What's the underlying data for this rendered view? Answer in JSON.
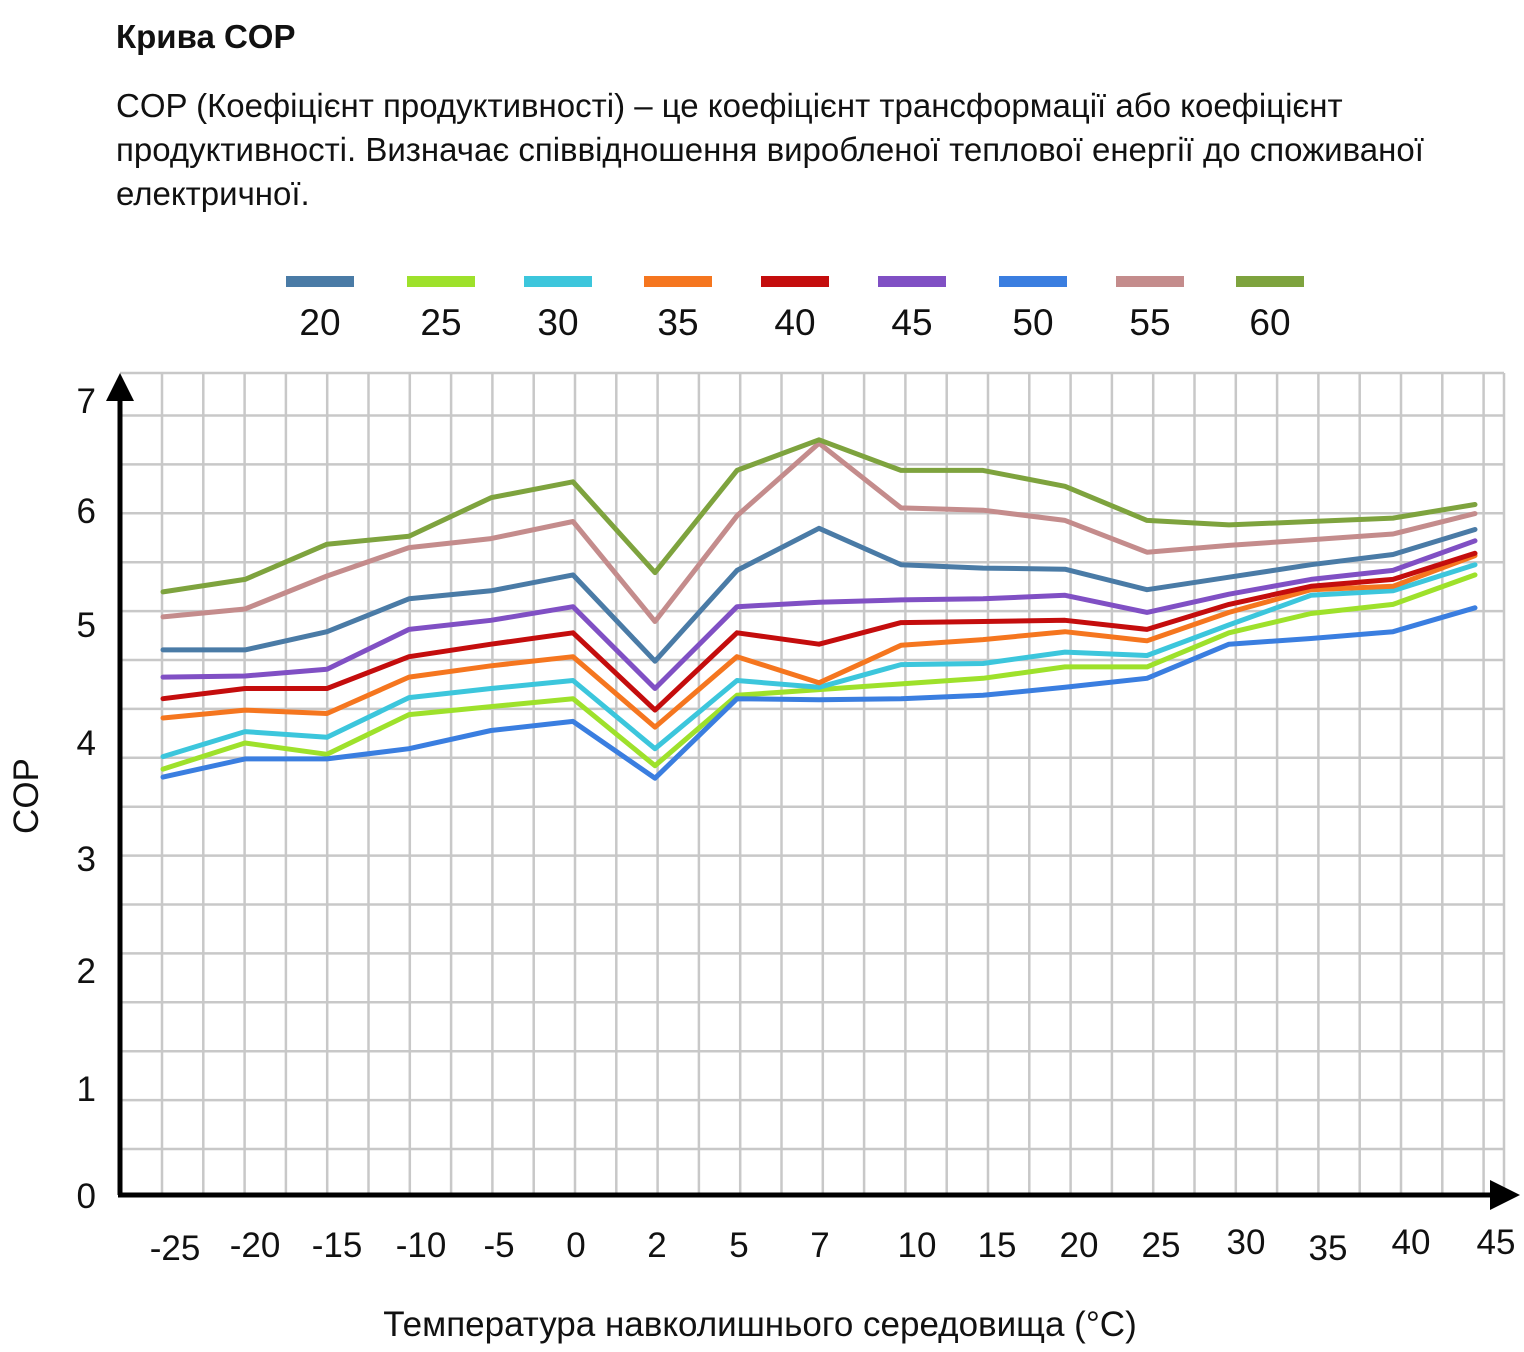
{
  "header": {
    "title": "Крива COP",
    "description": "COP (Коефіцієнт продуктивності) – це коефіцієнт трансформації або коефіцієнт продуктивності. Визначає співвідношення виробленої теплової енергії до споживаної електричної."
  },
  "chart_data": {
    "type": "line",
    "xlabel": "Температура навколишнього середовища (°C)",
    "ylabel": "COP",
    "x": [
      "-25",
      "-20",
      "-15",
      "-10",
      "-5",
      "0",
      "2",
      "5",
      "7",
      "10",
      "15",
      "20",
      "25",
      "30",
      "35",
      "40",
      "45"
    ],
    "ylim": [
      0,
      7
    ],
    "yticks": [
      "0",
      "1",
      "2",
      "3",
      "4",
      "5",
      "6",
      "7"
    ],
    "grid": true,
    "legend_position": "top",
    "series": [
      {
        "name": "20",
        "color": "#4a7ba6",
        "values": [
          4.8,
          4.8,
          4.96,
          5.25,
          5.32,
          5.46,
          4.7,
          5.5,
          5.87,
          5.55,
          5.52,
          5.51,
          5.33,
          5.44,
          5.55,
          5.64,
          5.86
        ]
      },
      {
        "name": "25",
        "color": "#9ee12b",
        "values": [
          3.75,
          3.98,
          3.88,
          4.23,
          4.3,
          4.37,
          3.78,
          4.4,
          4.45,
          4.5,
          4.55,
          4.65,
          4.65,
          4.95,
          5.12,
          5.2,
          5.46
        ]
      },
      {
        "name": "30",
        "color": "#3cc6dc",
        "values": [
          3.86,
          4.08,
          4.03,
          4.38,
          4.46,
          4.53,
          3.93,
          4.53,
          4.47,
          4.67,
          4.68,
          4.78,
          4.75,
          5.02,
          5.28,
          5.32,
          5.55
        ]
      },
      {
        "name": "35",
        "color": "#f5761f",
        "values": [
          4.2,
          4.27,
          4.24,
          4.56,
          4.66,
          4.74,
          4.12,
          4.74,
          4.51,
          4.84,
          4.89,
          4.96,
          4.88,
          5.13,
          5.33,
          5.36,
          5.63
        ]
      },
      {
        "name": "40",
        "color": "#c40d0d",
        "values": [
          4.37,
          4.46,
          4.46,
          4.74,
          4.85,
          4.95,
          4.27,
          4.95,
          4.85,
          5.04,
          5.05,
          5.06,
          4.98,
          5.2,
          5.36,
          5.42,
          5.65
        ]
      },
      {
        "name": "45",
        "color": "#8050c4",
        "values": [
          4.56,
          4.57,
          4.63,
          4.98,
          5.06,
          5.18,
          4.46,
          5.18,
          5.22,
          5.24,
          5.25,
          5.28,
          5.13,
          5.29,
          5.42,
          5.5,
          5.76
        ]
      },
      {
        "name": "50",
        "color": "#3a7ee0",
        "values": [
          3.68,
          3.84,
          3.84,
          3.93,
          4.09,
          4.17,
          3.67,
          4.37,
          4.36,
          4.37,
          4.4,
          4.47,
          4.55,
          4.85,
          4.9,
          4.96,
          5.17
        ]
      },
      {
        "name": "55",
        "color": "#c48c8c",
        "values": [
          5.09,
          5.16,
          5.45,
          5.7,
          5.78,
          5.93,
          5.05,
          5.98,
          6.62,
          6.05,
          6.03,
          5.94,
          5.66,
          5.72,
          5.77,
          5.82,
          6.0
        ]
      },
      {
        "name": "60",
        "color": "#7ea33e",
        "values": [
          5.31,
          5.42,
          5.73,
          5.8,
          6.14,
          6.28,
          5.48,
          6.38,
          6.65,
          6.38,
          6.38,
          6.24,
          5.94,
          5.9,
          5.93,
          5.96,
          6.08
        ]
      }
    ]
  }
}
